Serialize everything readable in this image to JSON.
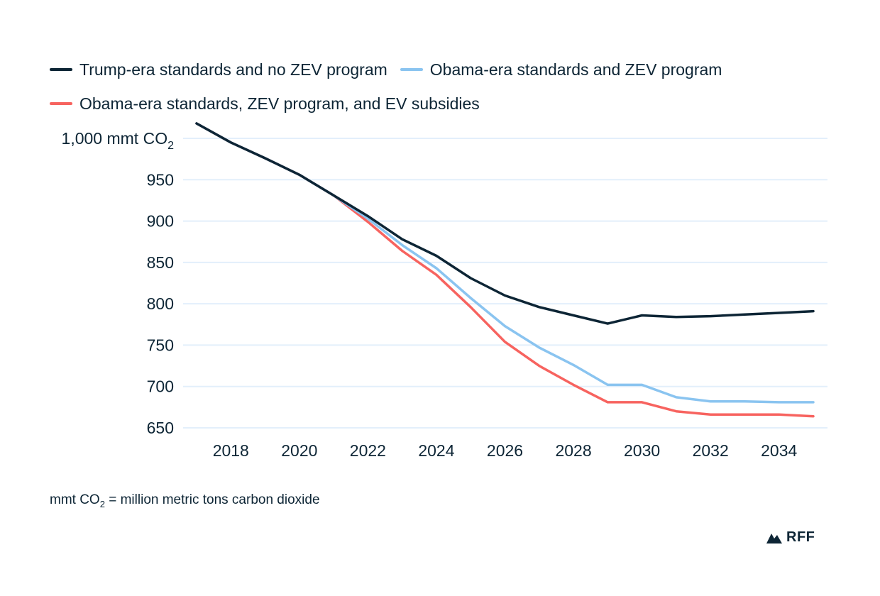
{
  "chart_data": {
    "type": "line",
    "title": "",
    "xlabel": "",
    "ylabel": "",
    "y_unit_label": "mmt CO",
    "y_unit_subscript": "2",
    "x": [
      2017,
      2018,
      2019,
      2020,
      2021,
      2022,
      2023,
      2024,
      2025,
      2026,
      2027,
      2028,
      2029,
      2030,
      2031,
      2032,
      2033,
      2034,
      2035
    ],
    "xlim": [
      2017,
      2035
    ],
    "ylim": [
      650,
      1000
    ],
    "x_ticks": [
      2018,
      2020,
      2022,
      2024,
      2026,
      2028,
      2030,
      2032,
      2034
    ],
    "y_ticks": [
      650,
      700,
      750,
      800,
      850,
      900,
      950,
      1000
    ],
    "y_tick_labels": [
      "650",
      "700",
      "750",
      "800",
      "850",
      "900",
      "950",
      "1,000 mmt CO"
    ],
    "grid": "horizontal",
    "legend_position": "top-left",
    "series": [
      {
        "name": "Trump-era standards and no ZEV program",
        "color": "#0d2535",
        "values": [
          1018,
          995,
          976,
          956,
          931,
          906,
          878,
          858,
          831,
          810,
          796,
          786,
          776,
          786,
          784,
          785,
          787,
          789,
          791
        ]
      },
      {
        "name": "Obama-era standards and ZEV program",
        "color": "#8ac4f0",
        "values": [
          1018,
          995,
          976,
          956,
          931,
          903,
          871,
          843,
          807,
          773,
          747,
          726,
          702,
          702,
          687,
          682,
          682,
          681,
          681
        ]
      },
      {
        "name": "Obama-era standards, ZEV program, and EV subsidies",
        "color": "#f7635f",
        "values": [
          1018,
          995,
          976,
          956,
          931,
          899,
          864,
          835,
          796,
          754,
          725,
          702,
          681,
          681,
          670,
          666,
          666,
          666,
          664
        ]
      }
    ]
  },
  "legend": {
    "items": [
      {
        "label": "Trump-era standards and no ZEV program",
        "color": "#0d2535"
      },
      {
        "label": "Obama-era standards and ZEV program",
        "color": "#8ac4f0"
      },
      {
        "label": "Obama-era standards, ZEV program, and EV subsidies",
        "color": "#f7635f"
      }
    ]
  },
  "footnote": {
    "prefix": "mmt CO",
    "subscript": "2",
    "suffix": " = million metric tons carbon dioxide"
  },
  "logo": {
    "text": "RFF",
    "icon": "mountain-icon"
  },
  "colors": {
    "text": "#0d2535",
    "grid": "#e3effb"
  }
}
